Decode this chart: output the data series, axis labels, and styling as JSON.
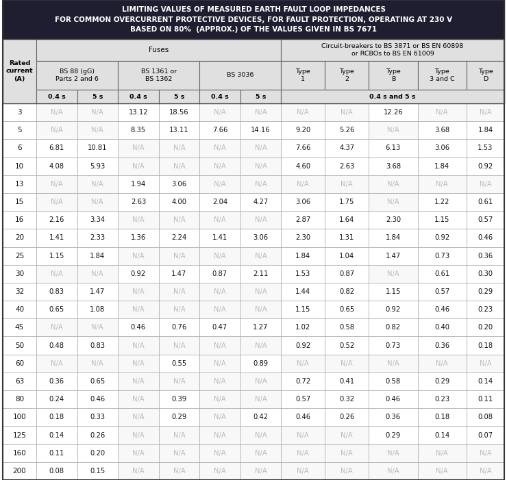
{
  "title_line1": "LIMITING VALUES OF MEASURED EARTH FAULT LOOP IMPEDANCES",
  "title_line2": "FOR COMMON OVERCURRENT PROTECTIVE DEVICES, FOR FAULT PROTECTION, OPERATING AT 230 V",
  "title_line3": "BASED ON 80%  (APPROX.) OF THE VALUES GIVEN IN BS 7671",
  "rows": [
    [
      3,
      "N/A",
      "N/A",
      "13.12",
      "18.56",
      "N/A",
      "N/A",
      "N/A",
      "N/A",
      "12.26",
      "N/A",
      "N/A"
    ],
    [
      5,
      "N/A",
      "N/A",
      "8.35",
      "13.11",
      "7.66",
      "14.16",
      "9.20",
      "5.26",
      "N/A",
      "3.68",
      "1.84"
    ],
    [
      6,
      "6.81",
      "10.81",
      "N/A",
      "N/A",
      "N/A",
      "N/A",
      "7.66",
      "4.37",
      "6.13",
      "3.06",
      "1.53"
    ],
    [
      10,
      "4.08",
      "5.93",
      "N/A",
      "N/A",
      "N/A",
      "N/A",
      "4.60",
      "2.63",
      "3.68",
      "1.84",
      "0.92"
    ],
    [
      13,
      "N/A",
      "N/A",
      "1.94",
      "3.06",
      "N/A",
      "N/A",
      "N/A",
      "N/A",
      "N/A",
      "N/A",
      "N/A"
    ],
    [
      15,
      "N/A",
      "N/A",
      "2.63",
      "4.00",
      "2.04",
      "4.27",
      "3.06",
      "1.75",
      "N/A",
      "1.22",
      "0.61"
    ],
    [
      16,
      "2.16",
      "3.34",
      "N/A",
      "N/A",
      "N/A",
      "N/A",
      "2.87",
      "1.64",
      "2.30",
      "1.15",
      "0.57"
    ],
    [
      20,
      "1.41",
      "2.33",
      "1.36",
      "2.24",
      "1.41",
      "3.06",
      "2.30",
      "1.31",
      "1.84",
      "0.92",
      "0.46"
    ],
    [
      25,
      "1.15",
      "1.84",
      "N/A",
      "N/A",
      "N/A",
      "N/A",
      "1.84",
      "1.04",
      "1.47",
      "0.73",
      "0.36"
    ],
    [
      30,
      "N/A",
      "N/A",
      "0.92",
      "1.47",
      "0.87",
      "2.11",
      "1.53",
      "0.87",
      "N/A",
      "0.61",
      "0.30"
    ],
    [
      32,
      "0.83",
      "1.47",
      "N/A",
      "N/A",
      "N/A",
      "N/A",
      "1.44",
      "0.82",
      "1.15",
      "0.57",
      "0.29"
    ],
    [
      40,
      "0.65",
      "1.08",
      "N/A",
      "N/A",
      "N/A",
      "N/A",
      "1.15",
      "0.65",
      "0.92",
      "0.46",
      "0.23"
    ],
    [
      45,
      "N/A",
      "N/A",
      "0.46",
      "0.76",
      "0.47",
      "1.27",
      "1.02",
      "0.58",
      "0.82",
      "0.40",
      "0.20"
    ],
    [
      50,
      "0.48",
      "0.83",
      "N/A",
      "N/A",
      "N/A",
      "N/A",
      "0.92",
      "0.52",
      "0.73",
      "0.36",
      "0.18"
    ],
    [
      60,
      "N/A",
      "N/A",
      "N/A",
      "0.55",
      "N/A",
      "0.89",
      "N/A",
      "N/A",
      "N/A",
      "N/A",
      "N/A"
    ],
    [
      63,
      "0.36",
      "0.65",
      "N/A",
      "N/A",
      "N/A",
      "N/A",
      "0.72",
      "0.41",
      "0.58",
      "0.29",
      "0.14"
    ],
    [
      80,
      "0.24",
      "0.46",
      "N/A",
      "0.39",
      "N/A",
      "N/A",
      "0.57",
      "0.32",
      "0.46",
      "0.23",
      "0.11"
    ],
    [
      100,
      "0.18",
      "0.33",
      "N/A",
      "0.29",
      "N/A",
      "0.42",
      "0.46",
      "0.26",
      "0.36",
      "0.18",
      "0.08"
    ],
    [
      125,
      "0.14",
      "0.26",
      "N/A",
      "N/A",
      "N/A",
      "N/A",
      "N/A",
      "N/A",
      "0.29",
      "0.14",
      "0.07"
    ],
    [
      160,
      "0.11",
      "0.20",
      "N/A",
      "N/A",
      "N/A",
      "N/A",
      "N/A",
      "N/A",
      "N/A",
      "N/A",
      "N/A"
    ],
    [
      200,
      "0.08",
      "0.15",
      "N/A",
      "N/A",
      "N/A",
      "N/A",
      "N/A",
      "N/A",
      "N/A",
      "N/A",
      "N/A"
    ]
  ]
}
